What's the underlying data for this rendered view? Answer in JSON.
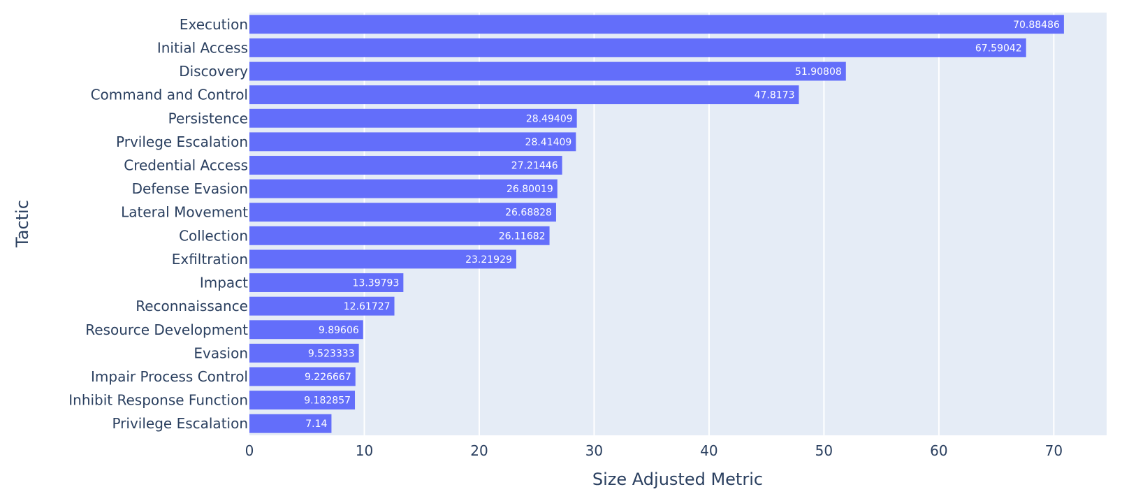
{
  "chart_data": {
    "type": "bar",
    "orientation": "horizontal",
    "xlabel": "Size Adjusted Metric",
    "ylabel": "Tactic",
    "xlim": [
      0,
      74.6
    ],
    "xticks": [
      0,
      10,
      20,
      30,
      40,
      50,
      60,
      70
    ],
    "grid": true,
    "colors": {
      "bar": "#636efa",
      "plot_bg": "#e5ecf6",
      "grid": "#ffffff",
      "text": "#2a3f5f",
      "label": "#ffffff"
    },
    "categories": [
      "Execution",
      "Initial Access",
      "Discovery",
      "Command and Control",
      "Persistence",
      "Prvilege Escalation",
      "Credential Access",
      "Defense Evasion",
      "Lateral Movement",
      "Collection",
      "Exfiltration",
      "Impact",
      "Reconnaissance",
      "Resource Development",
      "Evasion",
      "Impair Process Control",
      "Inhibit Response Function",
      "Privilege Escalation"
    ],
    "values": [
      70.88486,
      67.59042,
      51.90808,
      47.8173,
      28.49409,
      28.41409,
      27.21446,
      26.80019,
      26.68828,
      26.11682,
      23.21929,
      13.39793,
      12.61727,
      9.89606,
      9.523333,
      9.226667,
      9.182857,
      7.14
    ],
    "data_labels": [
      "70.88486",
      "67.59042",
      "51.90808",
      "47.8173",
      "28.49409",
      "28.41409",
      "27.21446",
      "26.80019",
      "26.68828",
      "26.11682",
      "23.21929",
      "13.39793",
      "12.61727",
      "9.89606",
      "9.523333",
      "9.226667",
      "9.182857",
      "7.14"
    ]
  }
}
